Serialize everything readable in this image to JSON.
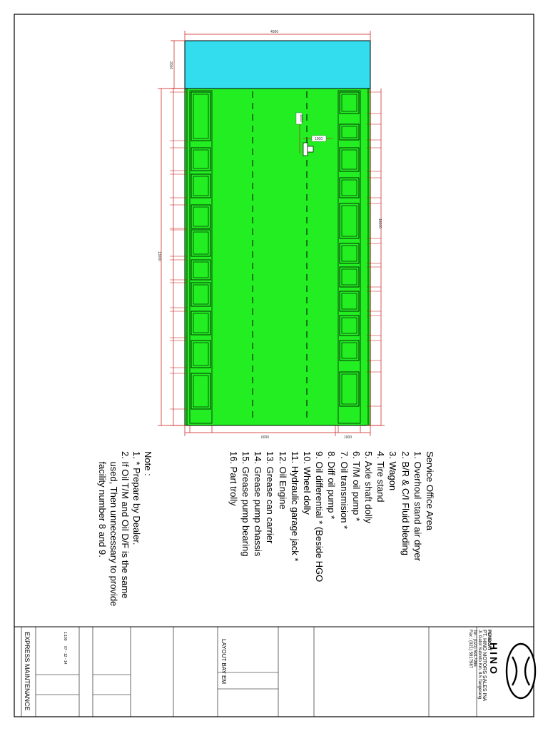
{
  "drawing": {
    "dimensions": {
      "overall_width": "4500",
      "office_depth": "2000",
      "overall_length": "13000",
      "right_length": "16000",
      "bottom_width": "6000",
      "bottom_right": "1000",
      "jack_width": "1000",
      "jack_depth": "1222"
    },
    "colors": {
      "bay_floor": "#22ee22",
      "office_area": "#33ddee",
      "dimension_line": "#cc1111",
      "frame": "#000000"
    }
  },
  "legend": {
    "items": [
      "Service Office Area",
      "1.  Overhoul stand air dryer",
      "2.  B/R & C/I Fluid bleding",
      "3.  Wagon",
      "4.  Tire stand",
      "5.  Axle shaft dolly",
      "6.  T/M oil pump *",
      "7.  Oil transmision *",
      "8.  Diff oil pump *",
      "9.  Oil differential * (Beside HGO",
      "10. Wheel dolly",
      "11. Hydraulic garage jack *",
      "12. Oil Engine",
      "13. Grease can carrier",
      "14. Grease pump chassis",
      "15. Grease pump bearing",
      "16. Part trolly"
    ]
  },
  "notes": {
    "title": "Note :",
    "lines": [
      "1. * Prepare by Dealer.",
      "2. If Oil T/M and Oil D/F is the same",
      "    used, Then unnecessary to provide",
      "    facility number 8 and 9."
    ]
  },
  "title_block": {
    "company_label": "PEMBUAT",
    "company": "PT. HINO MOTORS SALES INA",
    "address": "Jl. Gatot Subroto Km. 8.5 Tangerang",
    "phone": "Tel : (021) 5917986",
    "fax": "Fax : (021) 5917987",
    "logo_text": "HINO",
    "drawing_title": "LAYOUT BAY EM",
    "project": "EXPRESS MAINTENANCE",
    "scale": "1:100",
    "date": "07 - 12 - 14"
  }
}
